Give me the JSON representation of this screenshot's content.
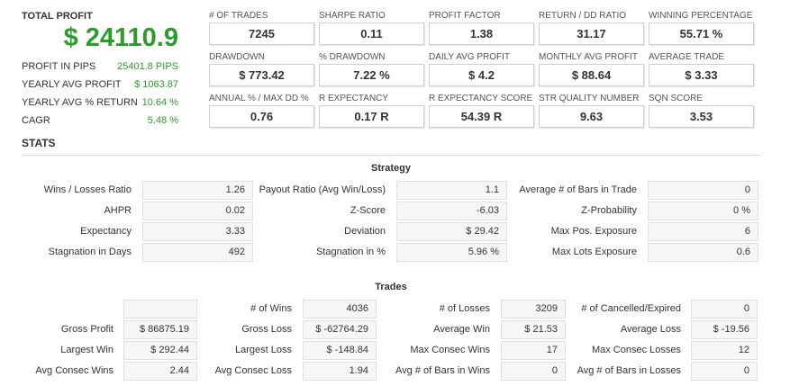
{
  "summary": {
    "title": "TOTAL PROFIT",
    "value": "$ 24110.9",
    "rows": [
      {
        "label": "PROFIT IN PIPS",
        "value": "25401.8 PIPS"
      },
      {
        "label": "YEARLY AVG PROFIT",
        "value": "$ 1063.87"
      },
      {
        "label": "YEARLY AVG % RETURN",
        "value": "10.64 %"
      },
      {
        "label": "CAGR",
        "value": "5.48 %"
      }
    ]
  },
  "metrics": [
    {
      "label": "# OF TRADES",
      "value": "7245"
    },
    {
      "label": "SHARPE RATIO",
      "value": "0.11"
    },
    {
      "label": "PROFIT FACTOR",
      "value": "1.38"
    },
    {
      "label": "RETURN / DD RATIO",
      "value": "31.17"
    },
    {
      "label": "WINNING PERCENTAGE",
      "value": "55.71 %"
    },
    {
      "label": "DRAWDOWN",
      "value": "$ 773.42"
    },
    {
      "label": "% DRAWDOWN",
      "value": "7.22 %"
    },
    {
      "label": "DAILY AVG PROFIT",
      "value": "$ 4.2"
    },
    {
      "label": "MONTHLY AVG PROFIT",
      "value": "$ 88.64"
    },
    {
      "label": "AVERAGE TRADE",
      "value": "$ 3.33"
    },
    {
      "label": "ANNUAL % / MAX DD %",
      "value": "0.76"
    },
    {
      "label": "R EXPECTANCY",
      "value": "0.17 R"
    },
    {
      "label": "R EXPECTANCY SCORE",
      "value": "54.39 R"
    },
    {
      "label": "STR QUALITY NUMBER",
      "value": "9.63"
    },
    {
      "label": "SQN SCORE",
      "value": "3.53"
    }
  ],
  "stats_heading": "STATS",
  "strategy": {
    "title": "Strategy",
    "rows": [
      [
        {
          "label": "Wins / Losses Ratio",
          "value": "1.26"
        },
        {
          "label": "Payout Ratio (Avg Win/Loss)",
          "value": "1.1"
        },
        {
          "label": "Average # of Bars in Trade",
          "value": "0"
        }
      ],
      [
        {
          "label": "AHPR",
          "value": "0.02"
        },
        {
          "label": "Z-Score",
          "value": "-6.03"
        },
        {
          "label": "Z-Probability",
          "value": "0 %"
        }
      ],
      [
        {
          "label": "Expectancy",
          "value": "3.33"
        },
        {
          "label": "Deviation",
          "value": "$ 29.42"
        },
        {
          "label": "Max Pos. Exposure",
          "value": "6"
        }
      ],
      [
        {
          "label": "Stagnation in Days",
          "value": "492"
        },
        {
          "label": "Stagnation in %",
          "value": "5.96 %"
        },
        {
          "label": "Max Lots Exposure",
          "value": "0.6"
        }
      ]
    ]
  },
  "trades": {
    "title": "Trades",
    "rows": [
      [
        {
          "label": "# of Wins",
          "value": "4036"
        },
        {
          "label": "# of Losses",
          "value": "3209"
        },
        {
          "label": "# of Cancelled/Expired",
          "value": "0"
        }
      ],
      [
        {
          "label": "Gross Profit",
          "value": "$ 86875.19"
        },
        {
          "label": "Gross Loss",
          "value": "$ -62764.29"
        },
        {
          "label": "Average Win",
          "value": "$ 21.53"
        },
        {
          "label": "Average Loss",
          "value": "$ -19.56"
        }
      ],
      [
        {
          "label": "Largest Win",
          "value": "$ 292.44"
        },
        {
          "label": "Largest Loss",
          "value": "$ -148.84"
        },
        {
          "label": "Max Consec Wins",
          "value": "17"
        },
        {
          "label": "Max Consec Losses",
          "value": "12"
        }
      ],
      [
        {
          "label": "Avg Consec Wins",
          "value": "2.44"
        },
        {
          "label": "Avg Consec Loss",
          "value": "1.94"
        },
        {
          "label": "Avg # of Bars in Wins",
          "value": "0"
        },
        {
          "label": "Avg # of Bars in Losses",
          "value": "0"
        }
      ]
    ]
  }
}
